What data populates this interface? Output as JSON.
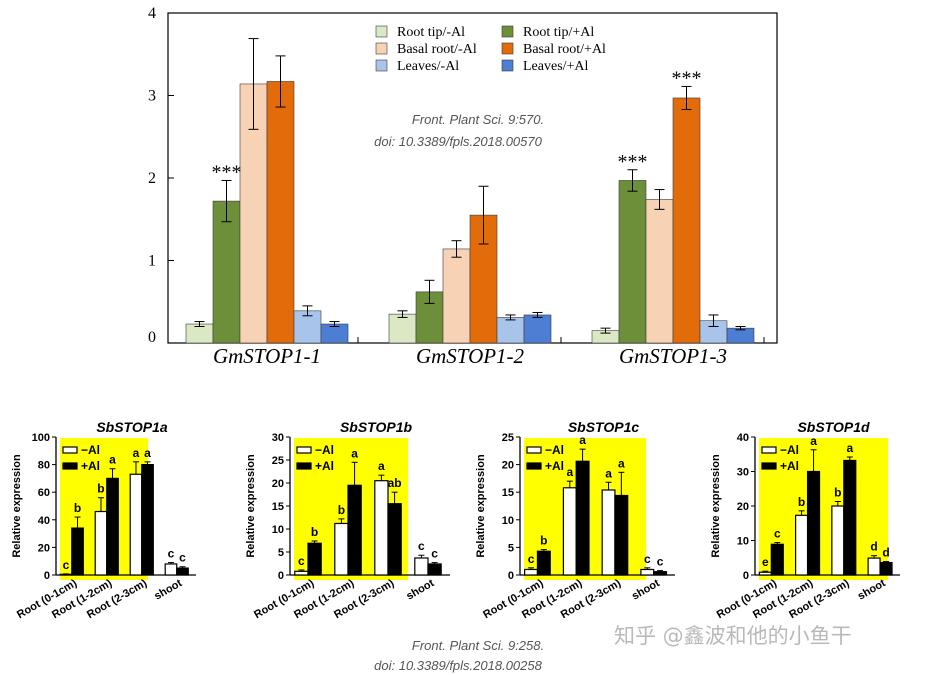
{
  "chart_data": [
    {
      "type": "bar",
      "panel": "GmSTOP1",
      "categories": [
        "GmSTOP1-1",
        "GmSTOP1-2",
        "GmSTOP1-3"
      ],
      "ylim": [
        0,
        4
      ],
      "yticks": [
        0,
        1,
        2,
        3,
        4
      ],
      "legend": {
        "placement": "top-center"
      },
      "series": [
        {
          "name": "Root tip/-Al",
          "legend_label": "Root tip/-Al",
          "color": "#dbe8c4",
          "values": [
            0.23,
            0.35,
            0.15
          ],
          "errors": [
            0.03,
            0.04,
            0.03
          ]
        },
        {
          "name": "Root tip/+Al",
          "legend_label": "Root tip/+Al",
          "color": "#6e8f3a",
          "values": [
            1.72,
            0.62,
            1.97
          ],
          "errors": [
            0.25,
            0.14,
            0.13
          ]
        },
        {
          "name": "Basal root/-Al",
          "legend_label": "Basal root/-Al",
          "color": "#f8d2b4",
          "values": [
            3.14,
            1.14,
            1.74
          ],
          "errors": [
            0.55,
            0.1,
            0.12
          ]
        },
        {
          "name": "Basal root/+Al",
          "legend_label": "Basal  root/+Al",
          "color": "#e36c0a",
          "values": [
            3.17,
            1.55,
            2.97
          ],
          "errors": [
            0.31,
            0.35,
            0.14
          ]
        },
        {
          "name": "Leaves/-Al",
          "legend_label": "Leaves/-Al",
          "color": "#a9c4ea",
          "values": [
            0.39,
            0.31,
            0.27
          ],
          "errors": [
            0.06,
            0.03,
            0.07
          ]
        },
        {
          "name": "Leaves/+Al",
          "legend_label": "Leaves/+Al",
          "color": "#4c7ed3",
          "values": [
            0.23,
            0.34,
            0.18
          ],
          "errors": [
            0.03,
            0.03,
            0.02
          ]
        }
      ],
      "annotations": [
        {
          "text": "***",
          "category": 0,
          "series": 1
        },
        {
          "text": "***",
          "category": 2,
          "series": 1
        },
        {
          "text": "***",
          "category": 2,
          "series": 3
        }
      ],
      "citation": [
        "Front. Plant Sci. 9:570.",
        "doi: 10.3389/fpls.2018.00570"
      ]
    },
    {
      "type": "bar",
      "panel": "SbSTOP1",
      "ylabel": "Relative expression",
      "categories": [
        "Root (0-1cm)",
        "Root (1-2cm)",
        "Root (2-3cm)",
        "shoot"
      ],
      "legend_labels": [
        "−Al",
        "+Al"
      ],
      "charts": [
        {
          "title": "SbSTOP1a",
          "ylim": [
            0,
            100
          ],
          "yticks": [
            0,
            20,
            40,
            60,
            80,
            100
          ],
          "minus": [
            0.5,
            46,
            73,
            8
          ],
          "plus": [
            34,
            70,
            80,
            5
          ],
          "minus_err": [
            0.3,
            10,
            9,
            1
          ],
          "plus_err": [
            8,
            7,
            2,
            1
          ],
          "letters_minus": [
            "c",
            "b",
            "a",
            "c"
          ],
          "letters_plus": [
            "b",
            "a",
            "a",
            "c"
          ]
        },
        {
          "title": "SbSTOP1b",
          "ylim": [
            0,
            30
          ],
          "yticks": [
            0,
            5,
            10,
            15,
            20,
            25,
            30
          ],
          "minus": [
            0.8,
            11.2,
            20.5,
            3.7
          ],
          "plus": [
            6.9,
            19.5,
            15.5,
            2.4
          ],
          "minus_err": [
            0.3,
            1.0,
            1.2,
            0.6
          ],
          "plus_err": [
            0.5,
            5.0,
            2.5,
            0.3
          ],
          "letters_minus": [
            "c",
            "b",
            "a",
            "c"
          ],
          "letters_plus": [
            "b",
            "a",
            "ab",
            "c"
          ]
        },
        {
          "title": "SbSTOP1c",
          "ylim": [
            0,
            25
          ],
          "yticks": [
            0,
            5,
            10,
            15,
            20,
            25
          ],
          "minus": [
            1.0,
            15.8,
            15.4,
            1.0
          ],
          "plus": [
            4.3,
            20.6,
            14.4,
            0.6
          ],
          "minus_err": [
            0.3,
            1.2,
            1.4,
            0.3
          ],
          "plus_err": [
            0.3,
            2.2,
            4.2,
            0.2
          ],
          "letters_minus": [
            "c",
            "a",
            "a",
            "c"
          ],
          "letters_plus": [
            "b",
            "a",
            "a",
            "c"
          ]
        },
        {
          "title": "SbSTOP1d",
          "ylim": [
            0,
            40
          ],
          "yticks": [
            0,
            10,
            20,
            30,
            40
          ],
          "minus": [
            0.8,
            17.3,
            20.0,
            4.9
          ],
          "plus": [
            8.9,
            30.0,
            33.2,
            3.6
          ],
          "minus_err": [
            0.3,
            1.3,
            1.3,
            0.7
          ],
          "plus_err": [
            0.5,
            6.3,
            1.0,
            0.3
          ],
          "letters_minus": [
            "e",
            "b",
            "b",
            "d"
          ],
          "letters_plus": [
            "c",
            "a",
            "a",
            "d"
          ]
        }
      ],
      "citation": [
        "Front. Plant Sci. 9:258.",
        "doi: 10.3389/fpls.2018.00258"
      ]
    }
  ],
  "watermark": "知乎 @鑫波和他的小鱼干",
  "colors": {
    "highlight": "#ffff00",
    "axis": "#000000"
  }
}
